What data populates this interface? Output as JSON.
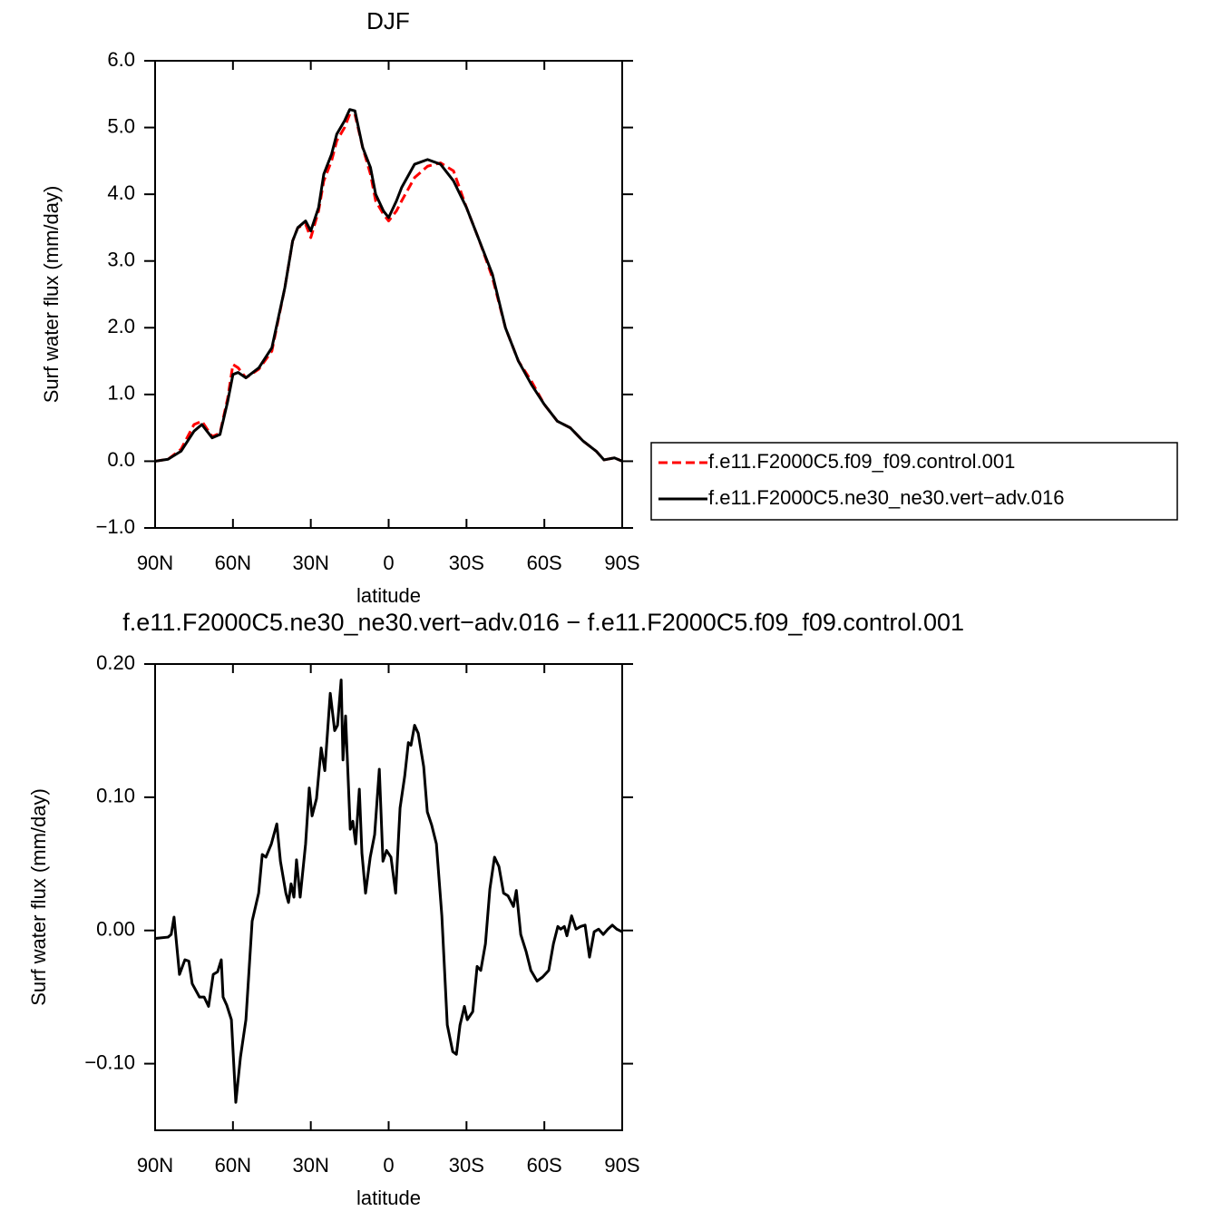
{
  "chart_data": [
    {
      "type": "line",
      "title": "DJF",
      "x_label": "latitude",
      "y_label": "Surf  water flux (mm/day)",
      "x": [
        90,
        85,
        80,
        75,
        72,
        68,
        65,
        62,
        60,
        58,
        55,
        50,
        45,
        40,
        37,
        35,
        32,
        30,
        27,
        25,
        22,
        20,
        17,
        15,
        13,
        10,
        7,
        5,
        2,
        0,
        -3,
        -5,
        -10,
        -15,
        -20,
        -25,
        -30,
        -35,
        -40,
        -45,
        -50,
        -55,
        -60,
        -65,
        -70,
        -75,
        -80,
        -83,
        -87,
        -90
      ],
      "series": [
        {
          "name": "f.e11.F2000C5.f09_f09.control.001",
          "color": "#ff0000",
          "dashed": true,
          "values": [
            0,
            0.03,
            0.18,
            0.55,
            0.6,
            0.37,
            0.42,
            0.95,
            1.45,
            1.4,
            1.25,
            1.38,
            1.65,
            2.6,
            3.3,
            3.5,
            3.55,
            3.35,
            3.75,
            4.2,
            4.5,
            4.8,
            5.0,
            5.2,
            5.2,
            4.7,
            4.3,
            3.9,
            3.7,
            3.6,
            3.75,
            3.9,
            4.25,
            4.42,
            4.47,
            4.35,
            3.8,
            3.3,
            2.75,
            2.0,
            1.5,
            1.2,
            0.85,
            0.6,
            0.5,
            0.3,
            0.15,
            0.02,
            0.05,
            0
          ]
        },
        {
          "name": "f.e11.F2000C5.ne30_ne30.vert−adv.016",
          "color": "#000000",
          "dashed": false,
          "values": [
            0,
            0.03,
            0.15,
            0.45,
            0.55,
            0.35,
            0.4,
            0.9,
            1.3,
            1.33,
            1.25,
            1.4,
            1.7,
            2.6,
            3.3,
            3.5,
            3.6,
            3.45,
            3.8,
            4.3,
            4.6,
            4.9,
            5.1,
            5.27,
            5.25,
            4.7,
            4.4,
            4.0,
            3.75,
            3.65,
            3.9,
            4.1,
            4.45,
            4.52,
            4.45,
            4.2,
            3.8,
            3.3,
            2.8,
            2.0,
            1.5,
            1.15,
            0.85,
            0.6,
            0.5,
            0.3,
            0.15,
            0.02,
            0.05,
            0
          ]
        }
      ],
      "xlim": [
        90,
        -90
      ],
      "xticks": [
        {
          "value": 90,
          "label": "90N"
        },
        {
          "value": 60,
          "label": "60N"
        },
        {
          "value": 30,
          "label": "30N"
        },
        0,
        {
          "value": -30,
          "label": "30S"
        },
        {
          "value": -60,
          "label": "60S"
        },
        {
          "value": -90,
          "label": "90S"
        }
      ],
      "ylim": [
        -1,
        6
      ],
      "yticks": [
        {
          "value": -1,
          "label": "−1.0"
        },
        {
          "value": 0,
          "label": "0.0"
        },
        {
          "value": 1,
          "label": "1.0"
        },
        {
          "value": 2,
          "label": "2.0"
        },
        {
          "value": 3,
          "label": "3.0"
        },
        {
          "value": 4,
          "label": "4.0"
        },
        {
          "value": 5,
          "label": "5.0"
        },
        {
          "value": 6,
          "label": "6.0"
        }
      ],
      "legend": "right"
    },
    {
      "type": "line",
      "title": "f.e11.F2000C5.ne30_ne30.vert−adv.016 − f.e11.F2000C5.f09_f09.control.001",
      "x_label": "latitude",
      "y_label": "Surf  water flux (mm/day)",
      "x": [
        90,
        85,
        83.8,
        82.7,
        80.6,
        78.5,
        77,
        75.7,
        72.9,
        71.1,
        69.4,
        67.6,
        65.9,
        64.5,
        63.8,
        62.4,
        60.6,
        58.9,
        57.1,
        55,
        52.6,
        50.1,
        48.7,
        47.3,
        45.2,
        43.1,
        41.7,
        39.6,
        38.6,
        37.6,
        36.5,
        35.5,
        34.1,
        32,
        30.6,
        29.5,
        27.8,
        26,
        24.6,
        22.5,
        20.8,
        19.7,
        18.3,
        17.6,
        16.6,
        14.8,
        13.8,
        12.7,
        11.3,
        10.3,
        8.9,
        7.1,
        5.4,
        3.6,
        2.2,
        0.8,
        -0.9,
        -2.7,
        -4.4,
        -6.2,
        -7.6,
        -8.6,
        -10,
        -11.4,
        -13.5,
        -14.9,
        -16.6,
        -18.4,
        -20.5,
        -22.6,
        -24.7,
        -26.1,
        -27.5,
        -29.2,
        -30.3,
        -32.4,
        -34.1,
        -35.5,
        -37.3,
        -39,
        -40.8,
        -42.5,
        -44.3,
        -46,
        -48.1,
        -49.2,
        -50.9,
        -53,
        -54.8,
        -57.2,
        -59.3,
        -61.7,
        -63.5,
        -65.2,
        -66.3,
        -67.7,
        -68.7,
        -70.5,
        -72.2,
        -74,
        -75.7,
        -77.4,
        -79.2,
        -80.9,
        -82.7,
        -84.5,
        -86.2,
        -87.9,
        -90
      ],
      "series": [
        {
          "name": "f.e11.F2000C5.ne30_ne30.vert−adv.016 − f.e11.F2000C5.f09_f09.control.001",
          "color": "#000000",
          "dashed": false,
          "values": [
            -0.006,
            -0.005,
            -0.003,
            0.01,
            -0.033,
            -0.022,
            -0.023,
            -0.04,
            -0.05,
            -0.05,
            -0.057,
            -0.033,
            -0.031,
            -0.022,
            -0.05,
            -0.056,
            -0.067,
            -0.129,
            -0.095,
            -0.067,
            0.007,
            0.028,
            0.057,
            0.055,
            0.065,
            0.08,
            0.052,
            0.028,
            0.021,
            0.035,
            0.025,
            0.053,
            0.025,
            0.065,
            0.107,
            0.086,
            0.099,
            0.137,
            0.12,
            0.178,
            0.15,
            0.154,
            0.188,
            0.128,
            0.161,
            0.076,
            0.082,
            0.065,
            0.106,
            0.058,
            0.028,
            0.055,
            0.072,
            0.121,
            0.052,
            0.06,
            0.055,
            0.028,
            0.092,
            0.116,
            0.141,
            0.139,
            0.154,
            0.148,
            0.123,
            0.089,
            0.079,
            0.065,
            0.011,
            -0.071,
            -0.091,
            -0.093,
            -0.071,
            -0.057,
            -0.067,
            -0.061,
            -0.027,
            -0.03,
            -0.01,
            0.031,
            0.055,
            0.048,
            0.028,
            0.026,
            0.018,
            0.03,
            -0.003,
            -0.016,
            -0.03,
            -0.038,
            -0.035,
            -0.03,
            -0.01,
            0.003,
            0.001,
            0.003,
            -0.004,
            0.011,
            0.001,
            0.003,
            0.004,
            -0.02,
            -0.001,
            0.001,
            -0.003,
            0.001,
            0.004,
            0.001,
            -0.001
          ]
        }
      ],
      "xlim": [
        90,
        -90
      ],
      "xticks": [
        {
          "value": 90,
          "label": "90N"
        },
        {
          "value": 60,
          "label": "60N"
        },
        {
          "value": 30,
          "label": "30N"
        },
        0,
        {
          "value": -30,
          "label": "30S"
        },
        {
          "value": -60,
          "label": "60S"
        },
        {
          "value": -90,
          "label": "90S"
        }
      ],
      "ylim": [
        -0.15,
        0.2
      ],
      "yticks": [
        {
          "value": -0.1,
          "label": "−0.10"
        },
        {
          "value": 0,
          "label": "0.00"
        },
        {
          "value": 0.1,
          "label": "0.10"
        },
        {
          "value": 0.2,
          "label": "0.20"
        }
      ]
    }
  ]
}
